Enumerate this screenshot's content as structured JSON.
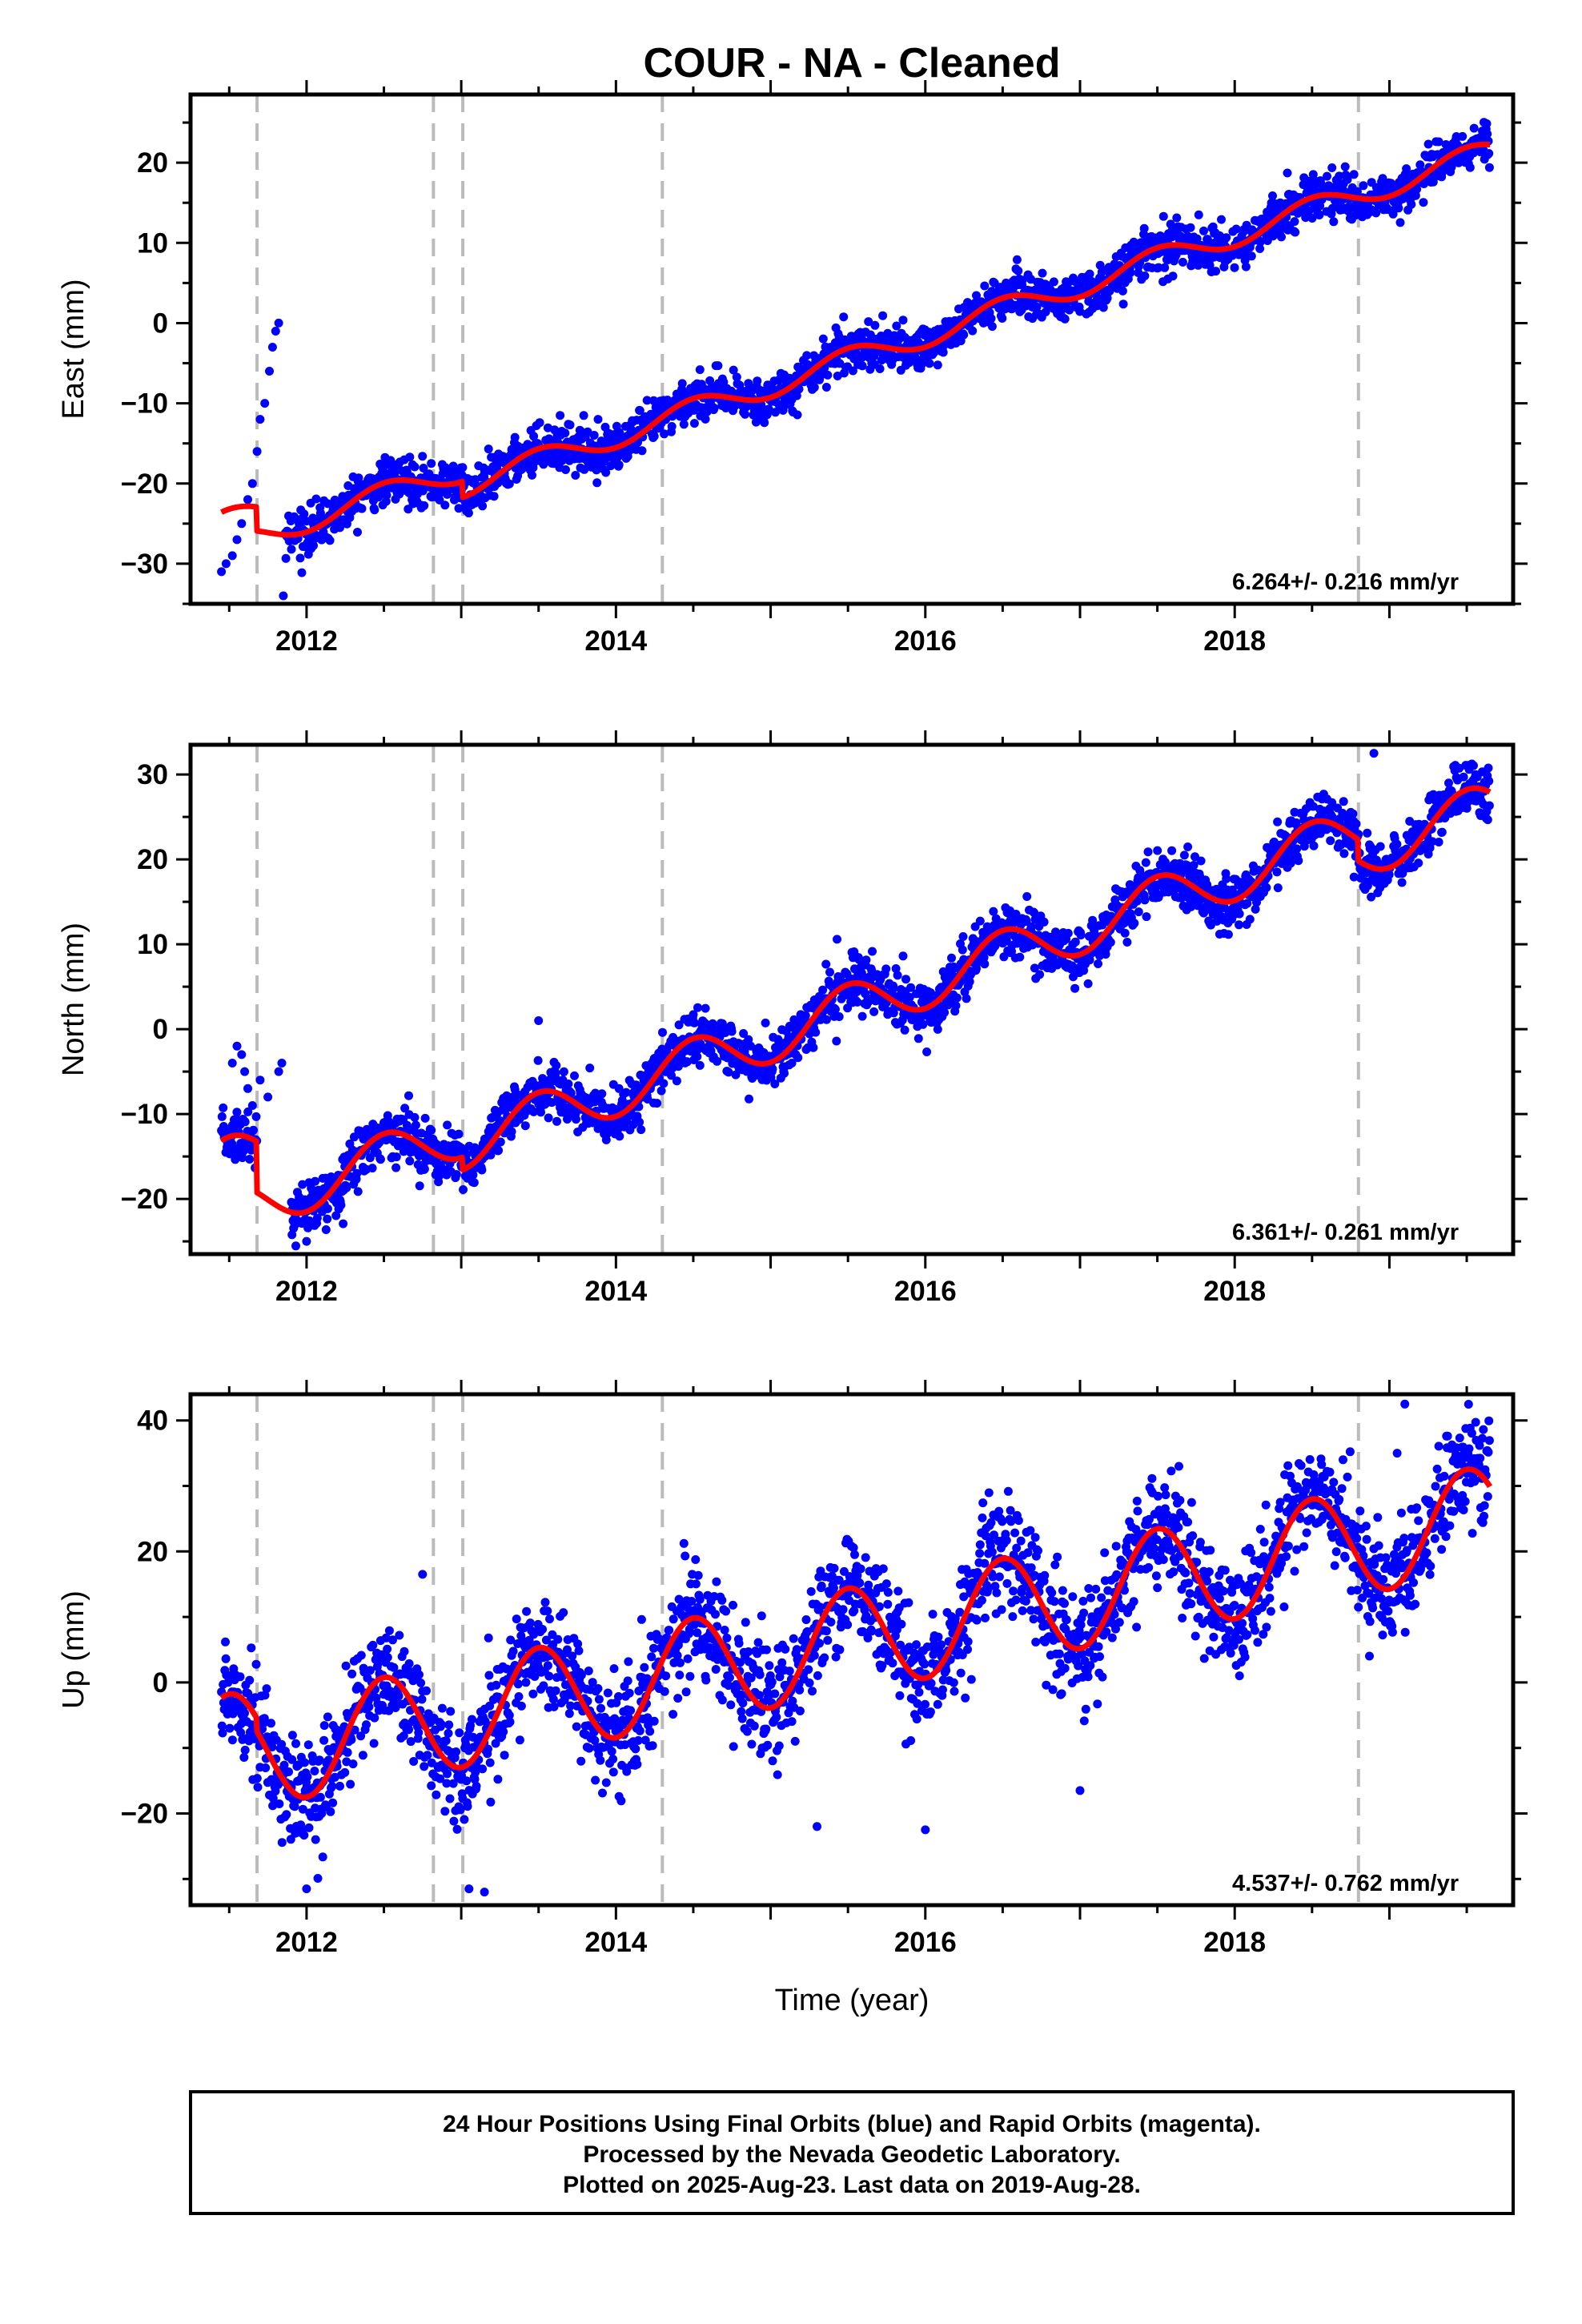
{
  "title": "COUR  - NA - Cleaned",
  "xlabel": "Time (year)",
  "footer": {
    "lines": [
      "24 Hour Positions Using Final Orbits (blue) and Rapid Orbits (magenta).",
      "Processed by the Nevada Geodetic Laboratory.",
      "Plotted on 2025-Aug-23. Last data on 2019-Aug-28."
    ]
  },
  "colors": {
    "data": "#0000ff",
    "model": "#ff0000",
    "event_lines": "#bbbbbb",
    "frame": "#000000"
  },
  "chart_data": [
    {
      "type": "scatter",
      "component": "east",
      "ylabel": "East (mm)",
      "rate_text": "6.264+/- 0.216 mm/yr",
      "xlim": [
        2011.25,
        2019.8
      ],
      "ylim": [
        -35,
        28.5
      ],
      "x_ticks": [
        2012,
        2014,
        2016,
        2018
      ],
      "y_ticks": [
        -30,
        -20,
        -10,
        0,
        10,
        20
      ],
      "event_lines": [
        2011.68,
        2012.82,
        2013.01,
        2014.3,
        2018.8
      ],
      "model": {
        "trend": {
          "t0": 2011.45,
          "y0": -25.0,
          "rate": 6.264
        },
        "annual_amplitude": 1.5,
        "offsets": [
          {
            "at": 2011.68,
            "value": -3.0
          },
          {
            "at": 2013.01,
            "value": -2.0
          }
        ],
        "end": 2019.65
      },
      "data_extent": [
        2011.45,
        2019.65
      ],
      "special_points": {
        "early_segment": [
          [
            2011.45,
            -31
          ],
          [
            2011.48,
            -30
          ],
          [
            2011.52,
            -29
          ],
          [
            2011.55,
            -27
          ],
          [
            2011.58,
            -25
          ],
          [
            2011.62,
            -22
          ],
          [
            2011.65,
            -20
          ],
          [
            2011.68,
            -16
          ],
          [
            2011.7,
            -12
          ],
          [
            2011.73,
            -10
          ],
          [
            2011.76,
            -6
          ],
          [
            2011.78,
            -3
          ],
          [
            2011.8,
            -1
          ],
          [
            2011.82,
            0
          ],
          [
            2011.85,
            -34
          ]
        ]
      },
      "scatter_sigma": 1.4
    },
    {
      "type": "scatter",
      "component": "north",
      "ylabel": "North (mm)",
      "rate_text": "6.361+/- 0.261 mm/yr",
      "xlim": [
        2011.25,
        2019.8
      ],
      "ylim": [
        -26.5,
        33.5
      ],
      "x_ticks": [
        2012,
        2014,
        2016,
        2018
      ],
      "y_ticks": [
        -20,
        -10,
        0,
        10,
        20,
        30
      ],
      "event_lines": [
        2011.68,
        2012.82,
        2013.01,
        2014.3,
        2018.8
      ],
      "model": {
        "trend": {
          "t0": 2011.45,
          "y0": -16.0,
          "rate": 6.361
        },
        "annual_amplitude": 3.0,
        "offsets": [
          {
            "at": 2011.68,
            "value": -6.0
          },
          {
            "at": 2013.01,
            "value": -1.5
          },
          {
            "at": 2018.8,
            "value": -2.5
          }
        ],
        "end": 2019.65
      },
      "data_extent": [
        2011.45,
        2019.65
      ],
      "special_points": {
        "early_segment": [
          [
            2011.52,
            -4
          ],
          [
            2011.55,
            -2
          ],
          [
            2011.58,
            -3
          ],
          [
            2011.6,
            -5
          ],
          [
            2011.62,
            -7
          ],
          [
            2011.65,
            -9
          ],
          [
            2011.7,
            -6
          ],
          [
            2011.75,
            -8
          ],
          [
            2011.82,
            -5
          ],
          [
            2011.84,
            -4
          ],
          [
            2012.0,
            -25
          ],
          [
            2013.5,
            1
          ],
          [
            2018.9,
            32.5
          ]
        ]
      },
      "scatter_sigma": 1.6
    },
    {
      "type": "scatter",
      "component": "up",
      "ylabel": "Up (mm)",
      "rate_text": "4.537+/- 0.762 mm/yr",
      "xlim": [
        2011.25,
        2019.8
      ],
      "ylim": [
        -34,
        44
      ],
      "x_ticks": [
        2012,
        2014,
        2016,
        2018
      ],
      "y_ticks": [
        -20,
        0,
        20,
        40
      ],
      "event_lines": [
        2011.68,
        2012.82,
        2013.01,
        2014.3,
        2018.8
      ],
      "model": {
        "trend": {
          "t0": 2011.45,
          "y0": -10.0,
          "rate": 4.537
        },
        "annual_amplitude": 8.0,
        "offsets": [
          {
            "at": 2011.68,
            "value": -2.0
          }
        ],
        "end": 2019.65
      },
      "data_extent": [
        2011.45,
        2019.65
      ],
      "special_points": {
        "outliers": [
          [
            2012.75,
            16.5
          ],
          [
            2013.05,
            -31.5
          ],
          [
            2013.15,
            -32
          ],
          [
            2012.0,
            -31.5
          ],
          [
            2015.3,
            -22
          ],
          [
            2016.0,
            -22.5
          ],
          [
            2019.1,
            42.5
          ],
          [
            2019.05,
            35
          ],
          [
            2018.7,
            34
          ],
          [
            2017.0,
            -16.5
          ]
        ]
      },
      "scatter_sigma": 4.2
    }
  ]
}
